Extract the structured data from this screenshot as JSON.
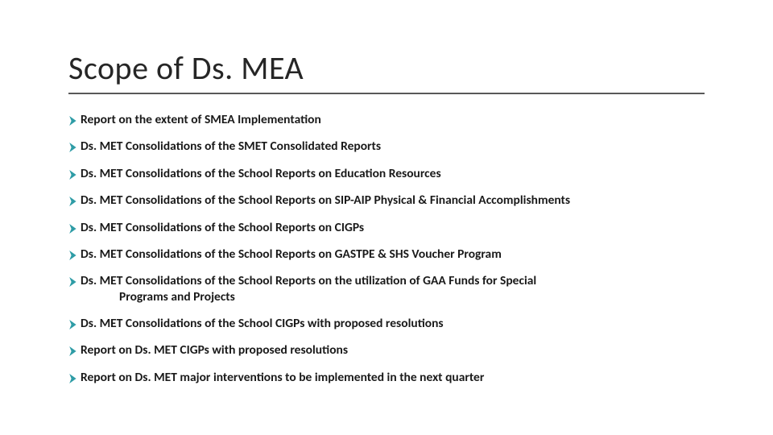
{
  "title": "Scope of Ds. MEA",
  "bullet_color": "#2e9ca6",
  "text_color": "#1a1a1a",
  "underline_color": "#595959",
  "title_fontsize": 40,
  "body_fontsize": 15.5,
  "items": [
    {
      "text": "Report on the extent of SMEA Implementation",
      "indented": false
    },
    {
      "text": "Ds. MET Consolidations of the SMET Consolidated Reports",
      "indented": false
    },
    {
      "text": "Ds. MET Consolidations of the School Reports on Education Resources",
      "indented": false
    },
    {
      "text": "Ds. MET Consolidations of the School Reports on SIP-AIP Physical & Financial Accomplishments",
      "indented": false
    },
    {
      "text": "Ds. MET Consolidations of the School Reports on CIGPs",
      "indented": false
    },
    {
      "text": "Ds. MET Consolidations of the School Reports on GASTPE & SHS Voucher Program",
      "indented": false
    },
    {
      "text": "Ds. MET Consolidations of the School Reports on the utilization of GAA Funds for Special",
      "text2": "Programs and Projects",
      "indented": true
    },
    {
      "text": "Ds. MET Consolidations of the School CIGPs with proposed resolutions",
      "indented": false
    },
    {
      "text": "Report on Ds. MET CIGPs with proposed resolutions",
      "indented": false
    },
    {
      "text": "Report on Ds. MET major interventions to be implemented in the next quarter",
      "indented": false
    }
  ]
}
